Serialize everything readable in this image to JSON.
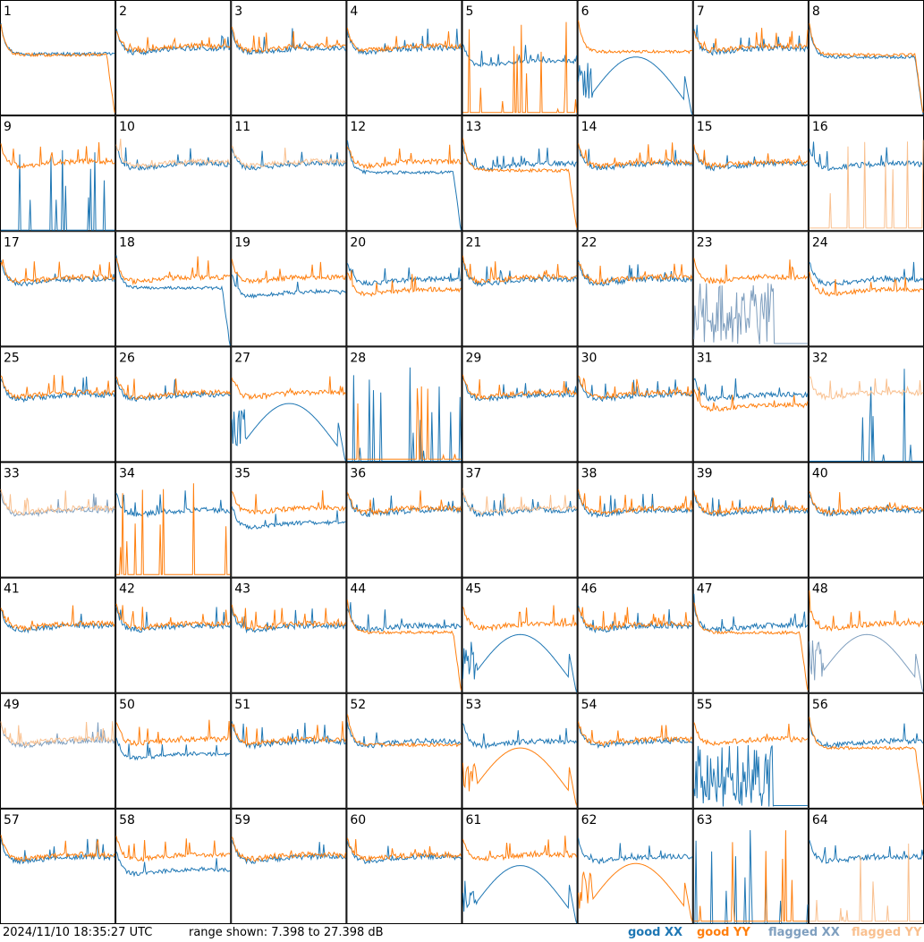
{
  "timestamp": "2024/11/10 18:35:27 UTC",
  "range_text": "range shown: 7.398 to 27.398 dB",
  "legend": [
    {
      "label": "good XX",
      "color": "#1f77b4"
    },
    {
      "label": "good YY",
      "color": "#ff7f0e"
    },
    {
      "label": "flagged XX",
      "color": "#7f9fbf"
    },
    {
      "label": "flagged YY",
      "color": "#f9c08f"
    }
  ],
  "chart_data": {
    "type": "line",
    "title": "",
    "ylim": [
      7.398,
      27.398
    ],
    "grid_rows": 8,
    "grid_cols": 8,
    "panels": [
      {
        "label": "1",
        "xx": "good",
        "yy": "good",
        "xx_shape": "flat",
        "yy_shape": "flat_drop"
      },
      {
        "label": "2",
        "xx": "good",
        "yy": "good",
        "xx_shape": "normal",
        "yy_shape": "normal"
      },
      {
        "label": "3",
        "xx": "good",
        "yy": "good",
        "xx_shape": "normal",
        "yy_shape": "normal"
      },
      {
        "label": "4",
        "xx": "good",
        "yy": "good",
        "xx_shape": "normal",
        "yy_shape": "normal"
      },
      {
        "label": "5",
        "xx": "good",
        "yy": "good",
        "xx_shape": "normal_low",
        "yy_shape": "dead"
      },
      {
        "label": "6",
        "xx": "good",
        "yy": "good",
        "xx_shape": "hump",
        "yy_shape": "flat"
      },
      {
        "label": "7",
        "xx": "good",
        "yy": "good",
        "xx_shape": "normal",
        "yy_shape": "normal"
      },
      {
        "label": "8",
        "xx": "good",
        "yy": "good",
        "xx_shape": "flat_drop",
        "yy_shape": "flat_drop"
      },
      {
        "label": "9",
        "xx": "good",
        "yy": "good",
        "xx_shape": "dead",
        "yy_shape": "normal"
      },
      {
        "label": "10",
        "xx": "good",
        "yy": "flagged",
        "xx_shape": "normal",
        "yy_shape": "normal"
      },
      {
        "label": "11",
        "xx": "good",
        "yy": "flagged",
        "xx_shape": "normal",
        "yy_shape": "normal"
      },
      {
        "label": "12",
        "xx": "good",
        "yy": "good",
        "xx_shape": "flat_drop",
        "yy_shape": "normal"
      },
      {
        "label": "13",
        "xx": "good",
        "yy": "good",
        "xx_shape": "normal",
        "yy_shape": "flat_drop"
      },
      {
        "label": "14",
        "xx": "good",
        "yy": "good",
        "xx_shape": "normal",
        "yy_shape": "normal"
      },
      {
        "label": "15",
        "xx": "good",
        "yy": "good",
        "xx_shape": "normal",
        "yy_shape": "normal"
      },
      {
        "label": "16",
        "xx": "good",
        "yy": "flagged",
        "xx_shape": "normal",
        "yy_shape": "dead"
      },
      {
        "label": "17",
        "xx": "good",
        "yy": "good",
        "xx_shape": "normal",
        "yy_shape": "normal"
      },
      {
        "label": "18",
        "xx": "good",
        "yy": "good",
        "xx_shape": "flat_drop",
        "yy_shape": "normal"
      },
      {
        "label": "19",
        "xx": "good",
        "yy": "good",
        "xx_shape": "normal_low",
        "yy_shape": "normal"
      },
      {
        "label": "20",
        "xx": "good",
        "yy": "good",
        "xx_shape": "normal",
        "yy_shape": "normal_low"
      },
      {
        "label": "21",
        "xx": "good",
        "yy": "good",
        "xx_shape": "normal",
        "yy_shape": "normal"
      },
      {
        "label": "22",
        "xx": "good",
        "yy": "good",
        "xx_shape": "normal",
        "yy_shape": "normal"
      },
      {
        "label": "23",
        "xx": "flagged",
        "yy": "good",
        "xx_shape": "noisy_dead",
        "yy_shape": "normal"
      },
      {
        "label": "24",
        "xx": "good",
        "yy": "good",
        "xx_shape": "normal",
        "yy_shape": "normal_low"
      },
      {
        "label": "25",
        "xx": "good",
        "yy": "good",
        "xx_shape": "normal",
        "yy_shape": "normal"
      },
      {
        "label": "26",
        "xx": "good",
        "yy": "good",
        "xx_shape": "normal",
        "yy_shape": "normal"
      },
      {
        "label": "27",
        "xx": "good",
        "yy": "good",
        "xx_shape": "hump",
        "yy_shape": "normal"
      },
      {
        "label": "28",
        "xx": "good",
        "yy": "good",
        "xx_shape": "dead",
        "yy_shape": "dead"
      },
      {
        "label": "29",
        "xx": "good",
        "yy": "good",
        "xx_shape": "normal",
        "yy_shape": "normal"
      },
      {
        "label": "30",
        "xx": "good",
        "yy": "good",
        "xx_shape": "normal",
        "yy_shape": "normal"
      },
      {
        "label": "31",
        "xx": "good",
        "yy": "good",
        "xx_shape": "normal",
        "yy_shape": "normal_low"
      },
      {
        "label": "32",
        "xx": "good",
        "yy": "flagged",
        "xx_shape": "dead",
        "yy_shape": "normal"
      },
      {
        "label": "33",
        "xx": "flagged",
        "yy": "flagged",
        "xx_shape": "normal",
        "yy_shape": "normal"
      },
      {
        "label": "34",
        "xx": "good",
        "yy": "good",
        "xx_shape": "normal",
        "yy_shape": "dead"
      },
      {
        "label": "35",
        "xx": "good",
        "yy": "good",
        "xx_shape": "normal_low",
        "yy_shape": "normal"
      },
      {
        "label": "36",
        "xx": "good",
        "yy": "good",
        "xx_shape": "normal",
        "yy_shape": "normal"
      },
      {
        "label": "37",
        "xx": "good",
        "yy": "flagged",
        "xx_shape": "normal",
        "yy_shape": "normal"
      },
      {
        "label": "38",
        "xx": "good",
        "yy": "good",
        "xx_shape": "normal",
        "yy_shape": "normal"
      },
      {
        "label": "39",
        "xx": "good",
        "yy": "good",
        "xx_shape": "normal",
        "yy_shape": "normal"
      },
      {
        "label": "40",
        "xx": "good",
        "yy": "good",
        "xx_shape": "normal",
        "yy_shape": "normal"
      },
      {
        "label": "41",
        "xx": "good",
        "yy": "good",
        "xx_shape": "normal",
        "yy_shape": "normal"
      },
      {
        "label": "42",
        "xx": "good",
        "yy": "good",
        "xx_shape": "normal",
        "yy_shape": "normal"
      },
      {
        "label": "43",
        "xx": "good",
        "yy": "good",
        "xx_shape": "normal",
        "yy_shape": "normal"
      },
      {
        "label": "44",
        "xx": "good",
        "yy": "good",
        "xx_shape": "normal",
        "yy_shape": "flat_drop"
      },
      {
        "label": "45",
        "xx": "good",
        "yy": "good",
        "xx_shape": "hump",
        "yy_shape": "normal"
      },
      {
        "label": "46",
        "xx": "good",
        "yy": "good",
        "xx_shape": "normal",
        "yy_shape": "normal"
      },
      {
        "label": "47",
        "xx": "good",
        "yy": "good",
        "xx_shape": "normal",
        "yy_shape": "flat_drop"
      },
      {
        "label": "48",
        "xx": "flagged",
        "yy": "good",
        "xx_shape": "hump",
        "yy_shape": "normal"
      },
      {
        "label": "49",
        "xx": "flagged",
        "yy": "flagged",
        "xx_shape": "normal",
        "yy_shape": "normal"
      },
      {
        "label": "50",
        "xx": "good",
        "yy": "good",
        "xx_shape": "normal_low",
        "yy_shape": "normal"
      },
      {
        "label": "51",
        "xx": "good",
        "yy": "good",
        "xx_shape": "normal",
        "yy_shape": "normal"
      },
      {
        "label": "52",
        "xx": "good",
        "yy": "good",
        "xx_shape": "normal",
        "yy_shape": "flat"
      },
      {
        "label": "53",
        "xx": "good",
        "yy": "good",
        "xx_shape": "normal",
        "yy_shape": "hump"
      },
      {
        "label": "54",
        "xx": "good",
        "yy": "good",
        "xx_shape": "normal",
        "yy_shape": "normal"
      },
      {
        "label": "55",
        "xx": "good",
        "yy": "good",
        "xx_shape": "noisy_dead",
        "yy_shape": "normal"
      },
      {
        "label": "56",
        "xx": "good",
        "yy": "good",
        "xx_shape": "normal",
        "yy_shape": "flat_drop"
      },
      {
        "label": "57",
        "xx": "good",
        "yy": "good",
        "xx_shape": "normal",
        "yy_shape": "normal"
      },
      {
        "label": "58",
        "xx": "good",
        "yy": "good",
        "xx_shape": "normal_low",
        "yy_shape": "normal"
      },
      {
        "label": "59",
        "xx": "good",
        "yy": "good",
        "xx_shape": "normal",
        "yy_shape": "normal"
      },
      {
        "label": "60",
        "xx": "good",
        "yy": "good",
        "xx_shape": "normal",
        "yy_shape": "normal"
      },
      {
        "label": "61",
        "xx": "good",
        "yy": "good",
        "xx_shape": "hump",
        "yy_shape": "normal"
      },
      {
        "label": "62",
        "xx": "good",
        "yy": "good",
        "xx_shape": "normal",
        "yy_shape": "hump"
      },
      {
        "label": "63",
        "xx": "good",
        "yy": "good",
        "xx_shape": "dead",
        "yy_shape": "dead"
      },
      {
        "label": "64",
        "xx": "good",
        "yy": "flagged",
        "xx_shape": "normal",
        "yy_shape": "dead"
      }
    ]
  }
}
